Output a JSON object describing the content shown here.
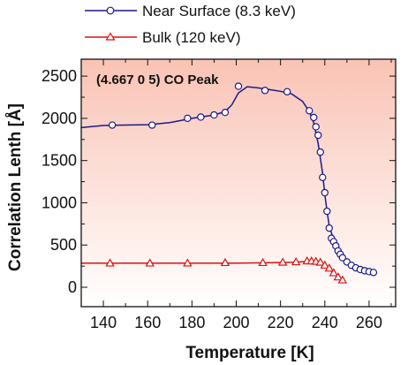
{
  "chart_data": {
    "type": "line",
    "annotation": "(4.667 0 5) CO Peak",
    "xlabel": "Temperature [K]",
    "ylabel": "Correlation Lenth [Å]",
    "xlim": [
      130,
      272
    ],
    "ylim": [
      -230,
      2700
    ],
    "xticks": [
      140,
      160,
      180,
      200,
      220,
      240,
      260
    ],
    "yticks": [
      0,
      500,
      1000,
      1500,
      2000,
      2500
    ],
    "grid": false,
    "legend_position": "top-left, above plot",
    "background": "vertical gradient, salmon at top to white at bottom",
    "series": [
      {
        "name": "Near Surface (8.3 keV)",
        "color": "#1a1a8c",
        "marker": "circle",
        "points": [
          [
            144,
            1920
          ],
          [
            162,
            1920
          ],
          [
            178,
            2000
          ],
          [
            184,
            2015
          ],
          [
            190,
            2040
          ],
          [
            195,
            2070
          ],
          [
            201,
            2380
          ],
          [
            213,
            2330
          ],
          [
            223,
            2315
          ],
          [
            233,
            2090
          ],
          [
            235,
            2010
          ],
          [
            236,
            1900
          ],
          [
            237,
            1800
          ],
          [
            238,
            1600
          ],
          [
            239,
            1300
          ],
          [
            240,
            1120
          ],
          [
            241,
            900
          ],
          [
            242,
            700
          ],
          [
            243,
            580
          ],
          [
            244,
            540
          ],
          [
            245,
            490
          ],
          [
            246,
            430
          ],
          [
            247,
            390
          ],
          [
            248,
            350
          ],
          [
            250,
            300
          ],
          [
            252,
            260
          ],
          [
            254,
            230
          ],
          [
            256,
            210
          ],
          [
            258,
            195
          ],
          [
            260,
            185
          ],
          [
            262,
            175
          ]
        ],
        "curve": [
          [
            130,
            1890
          ],
          [
            140,
            1915
          ],
          [
            150,
            1920
          ],
          [
            160,
            1925
          ],
          [
            170,
            1950
          ],
          [
            180,
            2000
          ],
          [
            190,
            2040
          ],
          [
            195,
            2080
          ],
          [
            198,
            2160
          ],
          [
            201,
            2300
          ],
          [
            205,
            2375
          ],
          [
            210,
            2360
          ],
          [
            215,
            2340
          ],
          [
            220,
            2320
          ],
          [
            225,
            2290
          ],
          [
            230,
            2200
          ],
          [
            233,
            2080
          ],
          [
            235,
            1950
          ],
          [
            237,
            1700
          ],
          [
            239,
            1350
          ],
          [
            240,
            1100
          ],
          [
            241,
            900
          ],
          [
            242,
            730
          ],
          [
            244,
            560
          ],
          [
            246,
            430
          ],
          [
            248,
            340
          ],
          [
            252,
            255
          ],
          [
            256,
            210
          ],
          [
            260,
            185
          ],
          [
            262,
            175
          ]
        ]
      },
      {
        "name": "Bulk (120 keV)",
        "color": "#dd1111",
        "marker": "triangle",
        "points": [
          [
            143,
            285
          ],
          [
            161,
            285
          ],
          [
            178,
            285
          ],
          [
            195,
            290
          ],
          [
            212,
            290
          ],
          [
            221,
            295
          ],
          [
            227,
            300
          ],
          [
            232,
            310
          ],
          [
            234,
            310
          ],
          [
            236,
            305
          ],
          [
            238,
            295
          ],
          [
            240,
            260
          ],
          [
            242,
            225
          ],
          [
            244,
            170
          ],
          [
            246,
            120
          ],
          [
            248,
            85
          ]
        ],
        "curve": [
          [
            130,
            285
          ],
          [
            140,
            285
          ],
          [
            160,
            285
          ],
          [
            180,
            285
          ],
          [
            200,
            285
          ],
          [
            215,
            290
          ],
          [
            225,
            295
          ],
          [
            232,
            305
          ],
          [
            236,
            305
          ],
          [
            239,
            280
          ],
          [
            241,
            240
          ],
          [
            243,
            190
          ],
          [
            245,
            140
          ],
          [
            247,
            100
          ],
          [
            248,
            85
          ]
        ]
      }
    ]
  }
}
